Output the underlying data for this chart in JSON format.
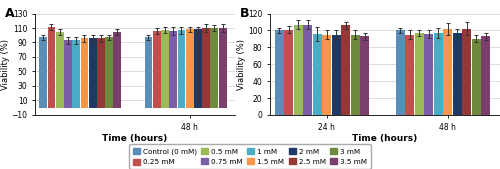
{
  "colors": [
    "#5B8DB8",
    "#C0504D",
    "#9BBB59",
    "#7B5EA7",
    "#4BACC6",
    "#F79646",
    "#1F3864",
    "#943735",
    "#6E8B3D",
    "#7B3F6E"
  ],
  "legend_labels": [
    "Control (0 mM)",
    "0.25 mM",
    "0.5 mM",
    "0.75 mM",
    "1 mM",
    "1.5 mM",
    "2 mM",
    "2.5 mM",
    "3 mM",
    "3.5 mM"
  ],
  "A": {
    "title": "A",
    "xlabel": "Time (hours)",
    "ylabel": "Viability (%)",
    "ylim": [
      -10,
      130
    ],
    "yticks": [
      -10,
      10,
      30,
      50,
      70,
      90,
      110,
      130
    ],
    "g1_vals": [
      97,
      111,
      105,
      93,
      93,
      96,
      96,
      96,
      97,
      104
    ],
    "g1_err": [
      4,
      4,
      4,
      5,
      5,
      5,
      4,
      5,
      4,
      4
    ],
    "g2_vals": [
      97,
      106,
      107,
      106,
      107,
      108,
      108,
      110,
      110,
      110
    ],
    "g2_err": [
      3,
      4,
      4,
      5,
      5,
      4,
      4,
      5,
      4,
      5
    ],
    "tick_label": "48 h"
  },
  "B": {
    "title": "B",
    "xlabel": "Time (hours)",
    "ylabel": "Viability (%)",
    "ylim": [
      0,
      120
    ],
    "yticks": [
      0,
      20,
      40,
      60,
      80,
      100,
      120
    ],
    "g1_vals": [
      100,
      101,
      107,
      107,
      96,
      95,
      95,
      106,
      95,
      93
    ],
    "g1_err": [
      3,
      4,
      5,
      5,
      8,
      5,
      5,
      4,
      5,
      4
    ],
    "g2_vals": [
      100,
      95,
      97,
      96,
      97,
      102,
      97,
      102,
      90,
      93
    ],
    "g2_err": [
      3,
      5,
      4,
      5,
      6,
      7,
      5,
      8,
      4,
      4
    ],
    "time_labels": [
      "24 h",
      "48 h"
    ]
  }
}
